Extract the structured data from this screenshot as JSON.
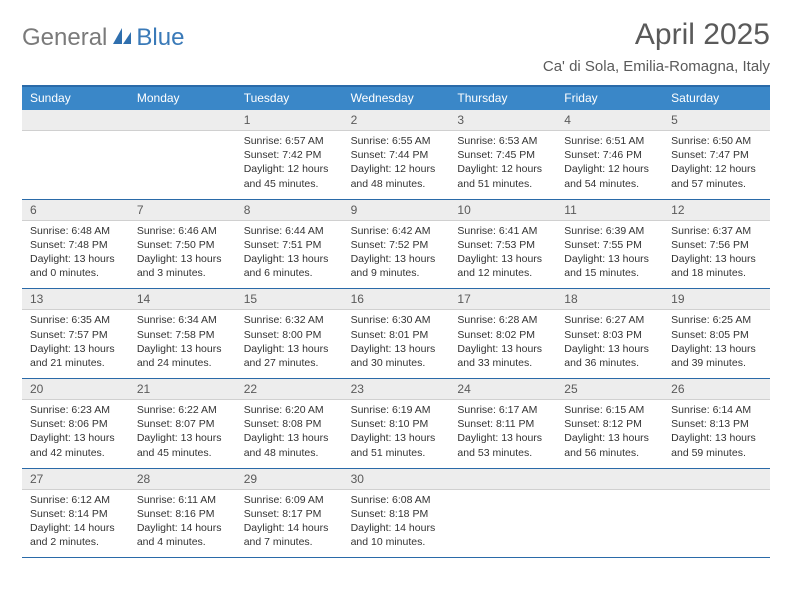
{
  "logo": {
    "text_general": "General",
    "text_blue": "Blue"
  },
  "title": "April 2025",
  "location": "Ca' di Sola, Emilia-Romagna, Italy",
  "colors": {
    "header_bar": "#3a87c8",
    "header_border": "#2a6aa8",
    "daynum_bg": "#ededed",
    "text_primary": "#333333",
    "text_muted": "#5a5a5a",
    "logo_gray": "#7a7a7a",
    "logo_blue": "#3a7ab8",
    "background": "#ffffff"
  },
  "typography": {
    "title_fontsize": 30,
    "location_fontsize": 15,
    "dayheader_fontsize": 12,
    "daynum_fontsize": 12,
    "body_fontsize": 10.5
  },
  "day_headers": [
    "Sunday",
    "Monday",
    "Tuesday",
    "Wednesday",
    "Thursday",
    "Friday",
    "Saturday"
  ],
  "weeks": [
    {
      "nums": [
        "",
        "",
        "1",
        "2",
        "3",
        "4",
        "5"
      ],
      "cells": [
        {},
        {},
        {
          "sunrise": "Sunrise: 6:57 AM",
          "sunset": "Sunset: 7:42 PM",
          "day1": "Daylight: 12 hours",
          "day2": "and 45 minutes."
        },
        {
          "sunrise": "Sunrise: 6:55 AM",
          "sunset": "Sunset: 7:44 PM",
          "day1": "Daylight: 12 hours",
          "day2": "and 48 minutes."
        },
        {
          "sunrise": "Sunrise: 6:53 AM",
          "sunset": "Sunset: 7:45 PM",
          "day1": "Daylight: 12 hours",
          "day2": "and 51 minutes."
        },
        {
          "sunrise": "Sunrise: 6:51 AM",
          "sunset": "Sunset: 7:46 PM",
          "day1": "Daylight: 12 hours",
          "day2": "and 54 minutes."
        },
        {
          "sunrise": "Sunrise: 6:50 AM",
          "sunset": "Sunset: 7:47 PM",
          "day1": "Daylight: 12 hours",
          "day2": "and 57 minutes."
        }
      ]
    },
    {
      "nums": [
        "6",
        "7",
        "8",
        "9",
        "10",
        "11",
        "12"
      ],
      "cells": [
        {
          "sunrise": "Sunrise: 6:48 AM",
          "sunset": "Sunset: 7:48 PM",
          "day1": "Daylight: 13 hours",
          "day2": "and 0 minutes."
        },
        {
          "sunrise": "Sunrise: 6:46 AM",
          "sunset": "Sunset: 7:50 PM",
          "day1": "Daylight: 13 hours",
          "day2": "and 3 minutes."
        },
        {
          "sunrise": "Sunrise: 6:44 AM",
          "sunset": "Sunset: 7:51 PM",
          "day1": "Daylight: 13 hours",
          "day2": "and 6 minutes."
        },
        {
          "sunrise": "Sunrise: 6:42 AM",
          "sunset": "Sunset: 7:52 PM",
          "day1": "Daylight: 13 hours",
          "day2": "and 9 minutes."
        },
        {
          "sunrise": "Sunrise: 6:41 AM",
          "sunset": "Sunset: 7:53 PM",
          "day1": "Daylight: 13 hours",
          "day2": "and 12 minutes."
        },
        {
          "sunrise": "Sunrise: 6:39 AM",
          "sunset": "Sunset: 7:55 PM",
          "day1": "Daylight: 13 hours",
          "day2": "and 15 minutes."
        },
        {
          "sunrise": "Sunrise: 6:37 AM",
          "sunset": "Sunset: 7:56 PM",
          "day1": "Daylight: 13 hours",
          "day2": "and 18 minutes."
        }
      ]
    },
    {
      "nums": [
        "13",
        "14",
        "15",
        "16",
        "17",
        "18",
        "19"
      ],
      "cells": [
        {
          "sunrise": "Sunrise: 6:35 AM",
          "sunset": "Sunset: 7:57 PM",
          "day1": "Daylight: 13 hours",
          "day2": "and 21 minutes."
        },
        {
          "sunrise": "Sunrise: 6:34 AM",
          "sunset": "Sunset: 7:58 PM",
          "day1": "Daylight: 13 hours",
          "day2": "and 24 minutes."
        },
        {
          "sunrise": "Sunrise: 6:32 AM",
          "sunset": "Sunset: 8:00 PM",
          "day1": "Daylight: 13 hours",
          "day2": "and 27 minutes."
        },
        {
          "sunrise": "Sunrise: 6:30 AM",
          "sunset": "Sunset: 8:01 PM",
          "day1": "Daylight: 13 hours",
          "day2": "and 30 minutes."
        },
        {
          "sunrise": "Sunrise: 6:28 AM",
          "sunset": "Sunset: 8:02 PM",
          "day1": "Daylight: 13 hours",
          "day2": "and 33 minutes."
        },
        {
          "sunrise": "Sunrise: 6:27 AM",
          "sunset": "Sunset: 8:03 PM",
          "day1": "Daylight: 13 hours",
          "day2": "and 36 minutes."
        },
        {
          "sunrise": "Sunrise: 6:25 AM",
          "sunset": "Sunset: 8:05 PM",
          "day1": "Daylight: 13 hours",
          "day2": "and 39 minutes."
        }
      ]
    },
    {
      "nums": [
        "20",
        "21",
        "22",
        "23",
        "24",
        "25",
        "26"
      ],
      "cells": [
        {
          "sunrise": "Sunrise: 6:23 AM",
          "sunset": "Sunset: 8:06 PM",
          "day1": "Daylight: 13 hours",
          "day2": "and 42 minutes."
        },
        {
          "sunrise": "Sunrise: 6:22 AM",
          "sunset": "Sunset: 8:07 PM",
          "day1": "Daylight: 13 hours",
          "day2": "and 45 minutes."
        },
        {
          "sunrise": "Sunrise: 6:20 AM",
          "sunset": "Sunset: 8:08 PM",
          "day1": "Daylight: 13 hours",
          "day2": "and 48 minutes."
        },
        {
          "sunrise": "Sunrise: 6:19 AM",
          "sunset": "Sunset: 8:10 PM",
          "day1": "Daylight: 13 hours",
          "day2": "and 51 minutes."
        },
        {
          "sunrise": "Sunrise: 6:17 AM",
          "sunset": "Sunset: 8:11 PM",
          "day1": "Daylight: 13 hours",
          "day2": "and 53 minutes."
        },
        {
          "sunrise": "Sunrise: 6:15 AM",
          "sunset": "Sunset: 8:12 PM",
          "day1": "Daylight: 13 hours",
          "day2": "and 56 minutes."
        },
        {
          "sunrise": "Sunrise: 6:14 AM",
          "sunset": "Sunset: 8:13 PM",
          "day1": "Daylight: 13 hours",
          "day2": "and 59 minutes."
        }
      ]
    },
    {
      "nums": [
        "27",
        "28",
        "29",
        "30",
        "",
        "",
        ""
      ],
      "cells": [
        {
          "sunrise": "Sunrise: 6:12 AM",
          "sunset": "Sunset: 8:14 PM",
          "day1": "Daylight: 14 hours",
          "day2": "and 2 minutes."
        },
        {
          "sunrise": "Sunrise: 6:11 AM",
          "sunset": "Sunset: 8:16 PM",
          "day1": "Daylight: 14 hours",
          "day2": "and 4 minutes."
        },
        {
          "sunrise": "Sunrise: 6:09 AM",
          "sunset": "Sunset: 8:17 PM",
          "day1": "Daylight: 14 hours",
          "day2": "and 7 minutes."
        },
        {
          "sunrise": "Sunrise: 6:08 AM",
          "sunset": "Sunset: 8:18 PM",
          "day1": "Daylight: 14 hours",
          "day2": "and 10 minutes."
        },
        {},
        {},
        {}
      ]
    }
  ]
}
